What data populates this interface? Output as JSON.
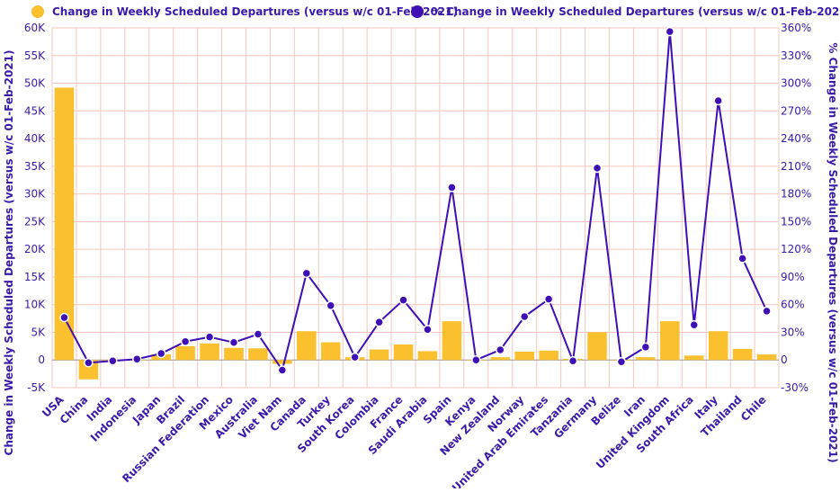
{
  "colors": {
    "bar": "#fbc02d",
    "line": "#3d0fb5",
    "grid": "#f6c6bc",
    "text": "#3a1aa8"
  },
  "chart_data": {
    "type": "bar+line",
    "categories": [
      "USA",
      "China",
      "India",
      "Indonesia",
      "Japan",
      "Brazil",
      "Russian Federation",
      "Mexico",
      "Australia",
      "Viet Nam",
      "Canada",
      "Turkey",
      "South Korea",
      "Colombia",
      "France",
      "Saudi Arabia",
      "Spain",
      "Kenya",
      "New Zealand",
      "Norway",
      "United Arab Emirates",
      "Tanzania",
      "Germany",
      "Belize",
      "Iran",
      "United Kingdom",
      "South Africa",
      "Italy",
      "Thailand",
      "Chile"
    ],
    "series": [
      {
        "name": "Change in Weekly Scheduled Departures (versus w/c 01-Feb-2021)",
        "type": "bar",
        "axis": "left",
        "values": [
          49200,
          -3500,
          -200,
          -100,
          1000,
          2500,
          3000,
          2200,
          2100,
          -700,
          5200,
          3200,
          500,
          1900,
          2800,
          1600,
          7000,
          0,
          500,
          1500,
          1700,
          200,
          5000,
          -100,
          500,
          7000,
          800,
          5200,
          2000,
          1000
        ]
      },
      {
        "name": "% Change in Weekly Scheduled Departures (versus w/c 01-Feb-2021)",
        "type": "line",
        "axis": "right",
        "values": [
          46,
          -3,
          -1,
          1,
          7,
          20,
          25,
          19,
          28,
          -11,
          94,
          59,
          3,
          41,
          65,
          33,
          187,
          0,
          11,
          47,
          66,
          -1,
          208,
          -2,
          14,
          356,
          38,
          281,
          110,
          53
        ]
      }
    ],
    "left_axis": {
      "label": "Change in Weekly Scheduled Departures (versus w/c 01-Feb-2021)",
      "ylim": [
        -5000,
        60000
      ],
      "ticks": [
        "-5K",
        "0",
        "5K",
        "10K",
        "15K",
        "20K",
        "25K",
        "30K",
        "35K",
        "40K",
        "45K",
        "50K",
        "55K",
        "60K"
      ]
    },
    "right_axis": {
      "label": "% Change in Weekly Scheduled Departures (versus w/c 01-Feb-2021)",
      "ylim": [
        -30,
        360
      ],
      "ticks": [
        "-30%",
        "0",
        "30%",
        "60%",
        "90%",
        "120%",
        "150%",
        "180%",
        "210%",
        "240%",
        "270%",
        "300%",
        "330%",
        "360%"
      ]
    },
    "grid": true,
    "legend_position": "top"
  }
}
